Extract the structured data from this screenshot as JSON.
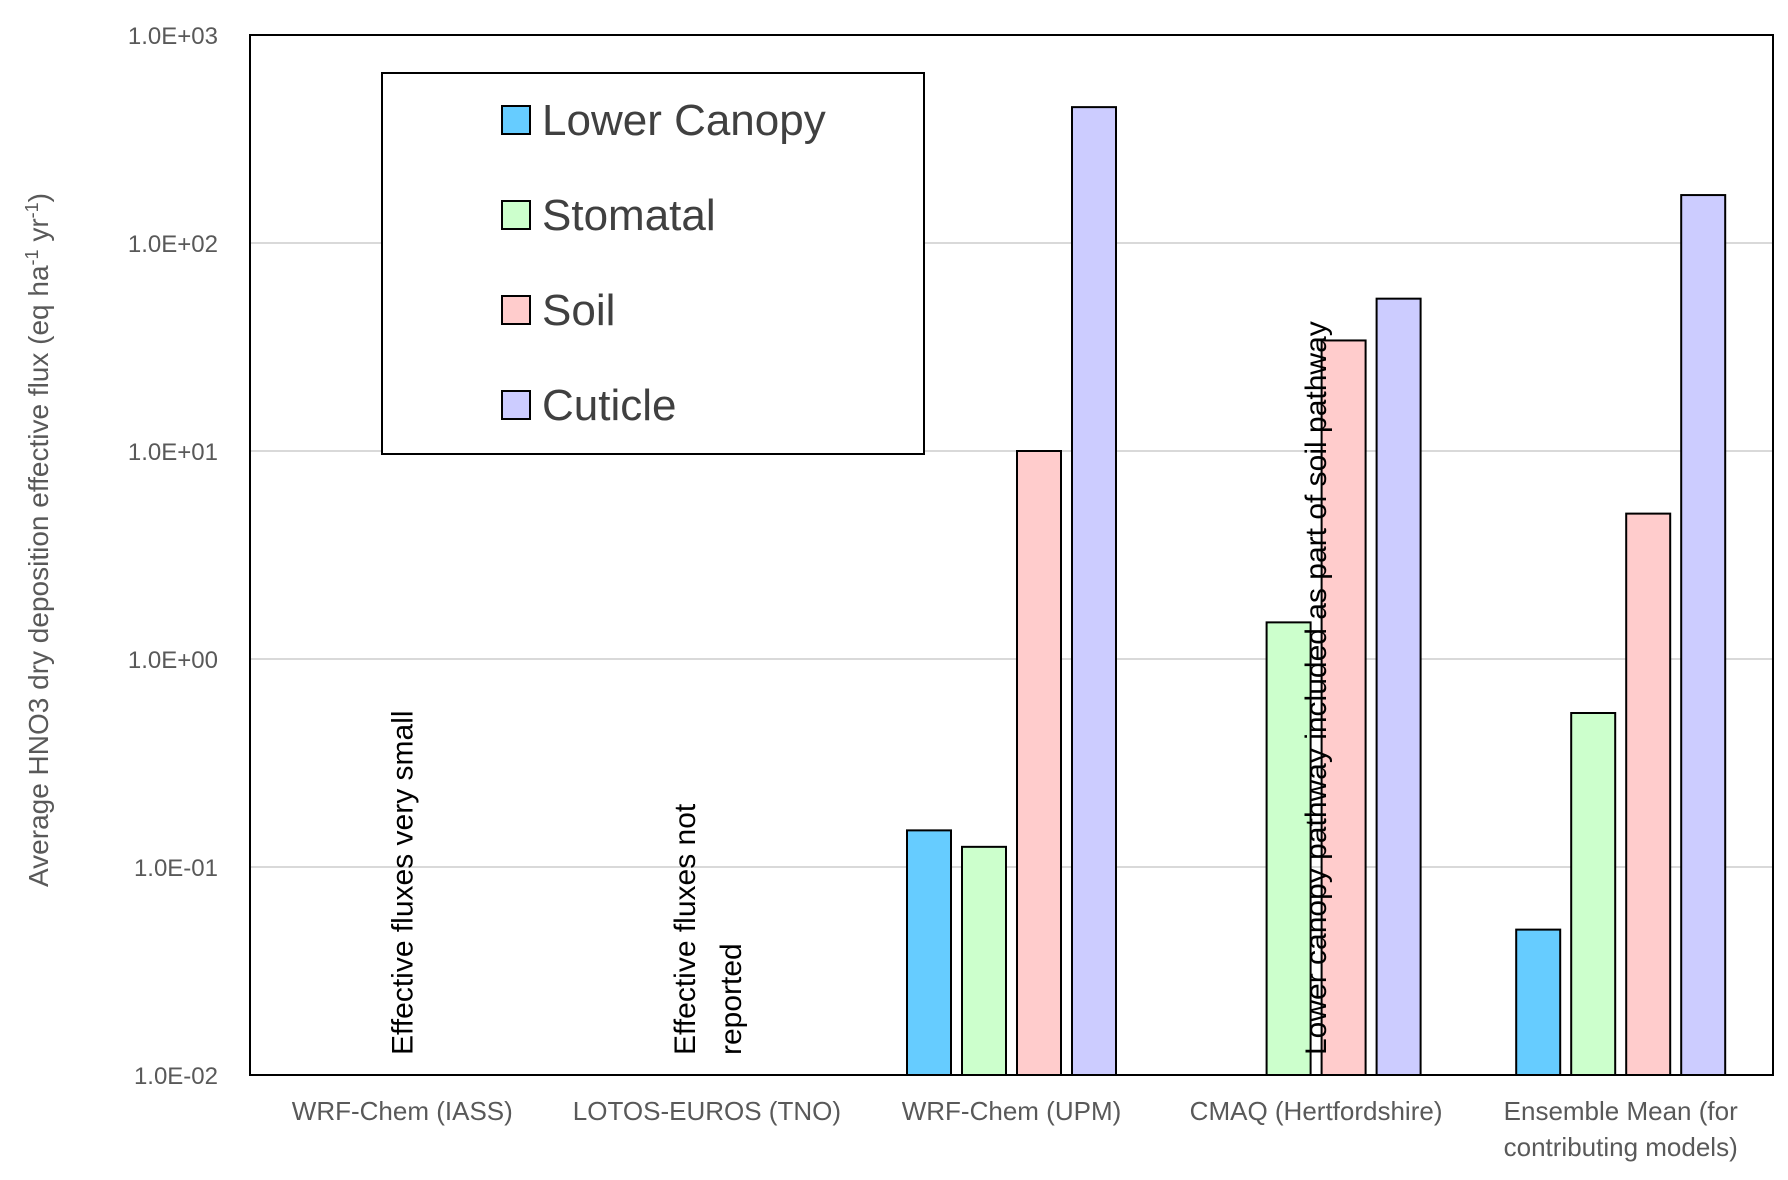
{
  "chart_data": {
    "type": "bar",
    "title": "",
    "xlabel": "",
    "ylabel": "Average HNO3 dry deposition effective flux (eq ha",
    "ylabel_sup1": "-1",
    "ylabel_mid": " yr",
    "ylabel_sup2": "-1",
    "ylabel_end": ")",
    "yscale": "log",
    "ylim": [
      0.01,
      1000
    ],
    "yticks": [
      "1.0E-02",
      "1.0E-01",
      "1.0E+00",
      "1.0E+01",
      "1.0E+02",
      "1.0E+03"
    ],
    "grid": true,
    "legend_position": "top-left",
    "categories": [
      [
        "WRF-Chem (IASS)"
      ],
      [
        "LOTOS-EUROS (TNO)"
      ],
      [
        "WRF-Chem (UPM)"
      ],
      [
        "CMAQ (Hertfordshire)"
      ],
      [
        "Ensemble Mean (for",
        "contributing models)"
      ]
    ],
    "series": [
      {
        "name": "Lower Canopy",
        "color": "#66ccff",
        "values": [
          null,
          null,
          0.15,
          null,
          0.05
        ]
      },
      {
        "name": "Stomatal",
        "color": "#ccffcc",
        "values": [
          null,
          null,
          0.125,
          1.5,
          0.55
        ]
      },
      {
        "name": "Soil",
        "color": "#ffcccc",
        "values": [
          null,
          null,
          10,
          34,
          5
        ]
      },
      {
        "name": "Cuticle",
        "color": "#ccccff",
        "values": [
          null,
          null,
          450,
          54,
          170
        ]
      }
    ],
    "annotations": [
      {
        "category": 0,
        "lines": [
          "Effective fluxes very small"
        ]
      },
      {
        "category": 1,
        "lines": [
          "Effective  fluxes not",
          "reported"
        ]
      },
      {
        "category": 3,
        "lines": [
          "Lower canopy pathway included as part of soil pathway"
        ]
      }
    ]
  }
}
